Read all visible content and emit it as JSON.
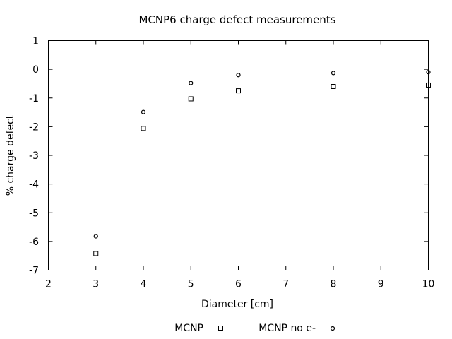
{
  "chart_data": {
    "type": "scatter",
    "title": "MCNP6 charge defect measurements",
    "xlabel": "Diameter [cm]",
    "ylabel": "% charge defect",
    "xlim": [
      2,
      10
    ],
    "ylim": [
      -7,
      1
    ],
    "xticks": [
      2,
      3,
      4,
      5,
      6,
      7,
      8,
      9,
      10
    ],
    "yticks": [
      -7,
      -6,
      -5,
      -4,
      -3,
      -2,
      -1,
      0,
      1
    ],
    "grid": false,
    "legend_position": "bottom",
    "series": [
      {
        "name": "MCNP",
        "marker": "open-square",
        "color": "#000000",
        "x": [
          3,
          4,
          5,
          6,
          8,
          10
        ],
        "y": [
          -6.42,
          -2.06,
          -1.03,
          -0.75,
          -0.6,
          -0.55
        ]
      },
      {
        "name": "MCNP no e-",
        "marker": "open-circle",
        "color": "#000000",
        "x": [
          3,
          4,
          5,
          6,
          8,
          10
        ],
        "y": [
          -5.82,
          -1.49,
          -0.48,
          -0.2,
          -0.13,
          -0.1
        ]
      }
    ]
  }
}
